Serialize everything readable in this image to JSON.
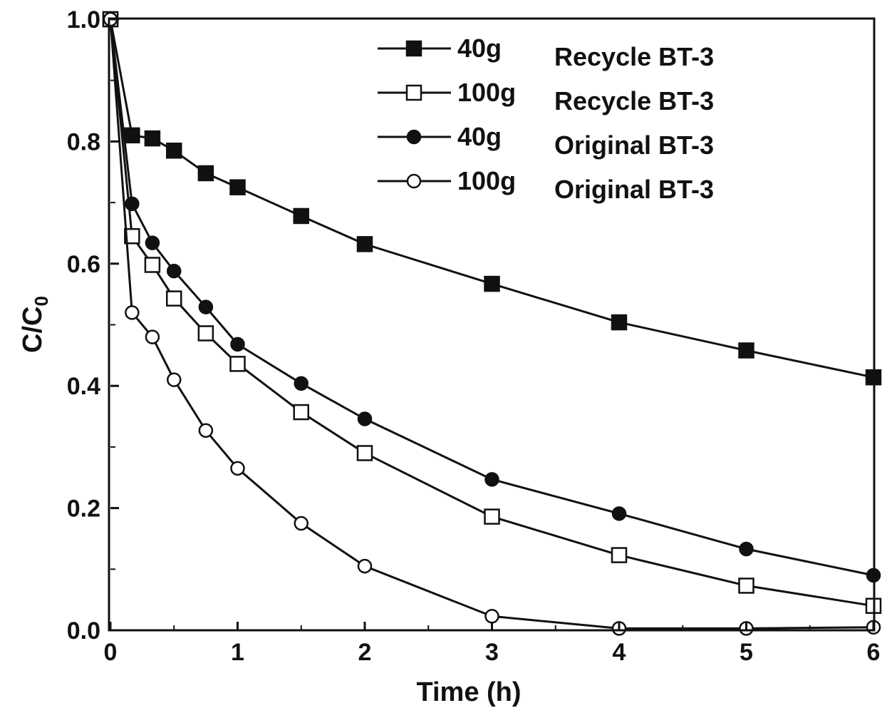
{
  "chart_data": {
    "type": "line",
    "xlabel": "Time (h)",
    "ylabel": "C/C",
    "ylabel_sub": "0",
    "xlim": [
      0,
      6
    ],
    "ylim": [
      0,
      1.0
    ],
    "xticks": [
      "0",
      "1",
      "2",
      "3",
      "4",
      "5",
      "6"
    ],
    "yticks": [
      "0.0",
      "0.2",
      "0.4",
      "0.6",
      "0.8",
      "1.0"
    ],
    "grid": false,
    "legend_position": "top-right",
    "series": [
      {
        "name": "40g",
        "label": "Recycle BT-3",
        "marker": "filled-square",
        "x": [
          0,
          0.17,
          0.33,
          0.5,
          0.75,
          1,
          1.5,
          2,
          3,
          4,
          5,
          6
        ],
        "y": [
          1.0,
          0.81,
          0.805,
          0.785,
          0.748,
          0.725,
          0.678,
          0.632,
          0.567,
          0.504,
          0.458,
          0.414
        ]
      },
      {
        "name": "100g",
        "label": "Recycle BT-3",
        "marker": "open-square",
        "x": [
          0,
          0.17,
          0.33,
          0.5,
          0.75,
          1,
          1.5,
          2,
          3,
          4,
          5,
          6
        ],
        "y": [
          1.0,
          0.645,
          0.598,
          0.543,
          0.486,
          0.436,
          0.357,
          0.29,
          0.186,
          0.123,
          0.073,
          0.04
        ]
      },
      {
        "name": "40g",
        "label": "Original BT-3",
        "marker": "filled-circle",
        "x": [
          0,
          0.17,
          0.33,
          0.5,
          0.75,
          1,
          1.5,
          2,
          3,
          4,
          5,
          6
        ],
        "y": [
          1.0,
          0.698,
          0.634,
          0.588,
          0.529,
          0.468,
          0.404,
          0.346,
          0.247,
          0.191,
          0.133,
          0.09
        ]
      },
      {
        "name": "100g",
        "label": "Original BT-3",
        "marker": "open-circle",
        "x": [
          0,
          0.17,
          0.33,
          0.5,
          0.75,
          1,
          1.5,
          2,
          3,
          4,
          5,
          6
        ],
        "y": [
          1.0,
          0.52,
          0.48,
          0.41,
          0.327,
          0.265,
          0.175,
          0.105,
          0.023,
          0.003,
          0.003,
          0.005
        ]
      }
    ]
  }
}
